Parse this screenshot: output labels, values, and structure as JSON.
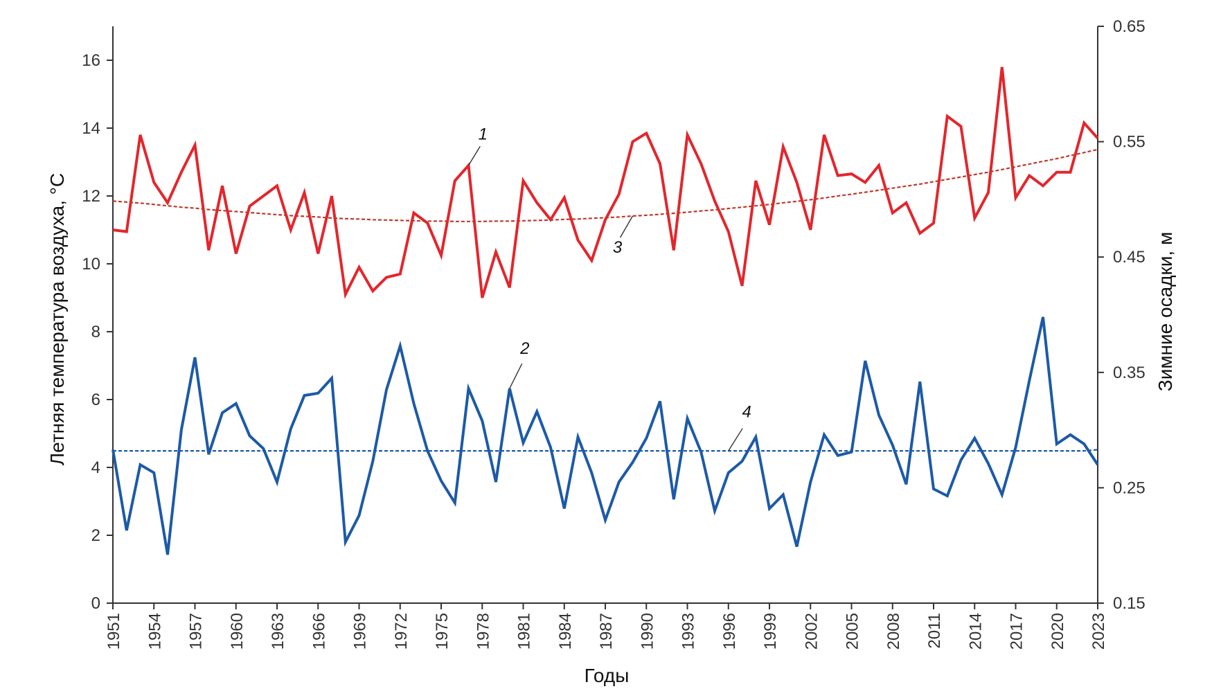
{
  "chart_data": {
    "type": "line",
    "xlabel": "Годы",
    "ylabel_left": "Летняя температура воздуха, °С",
    "ylabel_right": "Зимние осадки, м",
    "xlim": [
      1951,
      2023
    ],
    "ylim_left": [
      0,
      17
    ],
    "ylim_right": [
      0.15,
      0.65
    ],
    "x_ticks": [
      1951,
      1954,
      1957,
      1960,
      1963,
      1966,
      1969,
      1972,
      1975,
      1978,
      1981,
      1984,
      1987,
      1990,
      1993,
      1996,
      1999,
      2002,
      2005,
      2008,
      2011,
      2014,
      2017,
      2020,
      2023
    ],
    "y_ticks_left": [
      0,
      2,
      4,
      6,
      8,
      10,
      12,
      14,
      16
    ],
    "y_ticks_right": [
      "0.15",
      "0.25",
      "0.35",
      "0.45",
      "0.55",
      "0.65"
    ],
    "grid": false,
    "colors": {
      "temperature": "#e3262c",
      "precipitation": "#1d5aa7",
      "temp_trend": "#c0392b",
      "precip_trend": "#1d5aa7"
    },
    "x": [
      1951,
      1952,
      1953,
      1954,
      1955,
      1956,
      1957,
      1958,
      1959,
      1960,
      1961,
      1962,
      1963,
      1964,
      1965,
      1966,
      1967,
      1968,
      1969,
      1970,
      1971,
      1972,
      1973,
      1974,
      1975,
      1976,
      1977,
      1978,
      1979,
      1980,
      1981,
      1982,
      1983,
      1984,
      1985,
      1986,
      1987,
      1988,
      1989,
      1990,
      1991,
      1992,
      1993,
      1994,
      1995,
      1996,
      1997,
      1998,
      1999,
      2000,
      2001,
      2002,
      2003,
      2004,
      2005,
      2006,
      2007,
      2008,
      2009,
      2010,
      2011,
      2012,
      2013,
      2014,
      2015,
      2016,
      2017,
      2018,
      2019,
      2020,
      2021,
      2022,
      2023
    ],
    "series": [
      {
        "label": "1",
        "axis": "left",
        "style": "solid",
        "values": [
          11.0,
          10.95,
          13.8,
          12.4,
          11.8,
          12.7,
          13.5,
          10.4,
          12.3,
          10.3,
          11.7,
          12.0,
          12.3,
          11.0,
          12.1,
          10.3,
          12.0,
          9.1,
          9.9,
          9.2,
          9.6,
          9.7,
          11.5,
          11.2,
          10.25,
          12.45,
          12.9,
          9.0,
          10.35,
          9.3,
          12.45,
          11.8,
          11.3,
          11.95,
          10.7,
          10.1,
          11.3,
          12.05,
          13.6,
          13.85,
          12.95,
          10.4,
          13.8,
          12.95,
          11.85,
          10.95,
          9.35,
          12.45,
          11.15,
          13.45,
          12.4,
          11.0,
          13.8,
          12.6,
          12.65,
          12.4,
          12.9,
          11.5,
          11.8,
          10.9,
          11.2,
          14.35,
          14.05,
          11.35,
          12.1,
          15.8,
          11.95,
          12.6,
          12.3,
          12.7,
          12.7,
          14.15,
          13.7
        ]
      },
      {
        "label": "2",
        "axis": "right",
        "style": "solid",
        "values": [
          0.283,
          0.213,
          0.27,
          0.263,
          0.192,
          0.3,
          0.363,
          0.279,
          0.315,
          0.323,
          0.295,
          0.284,
          0.255,
          0.301,
          0.33,
          0.332,
          0.345,
          0.203,
          0.226,
          0.273,
          0.335,
          0.373,
          0.323,
          0.282,
          0.256,
          0.237,
          0.336,
          0.308,
          0.255,
          0.336,
          0.289,
          0.316,
          0.285,
          0.232,
          0.294,
          0.263,
          0.222,
          0.255,
          0.272,
          0.293,
          0.325,
          0.24,
          0.31,
          0.281,
          0.23,
          0.263,
          0.273,
          0.294,
          0.232,
          0.244,
          0.199,
          0.255,
          0.296,
          0.278,
          0.281,
          0.36,
          0.313,
          0.287,
          0.253,
          0.342,
          0.249,
          0.243,
          0.274,
          0.293,
          0.271,
          0.244,
          0.285,
          0.343,
          0.398,
          0.288,
          0.296,
          0.288,
          0.27
        ]
      },
      {
        "label": "3",
        "axis": "left",
        "style": "dashed",
        "values": [
          11.85,
          11.82,
          11.79,
          11.75,
          11.71,
          11.67,
          11.64,
          11.6,
          11.57,
          11.54,
          11.51,
          11.48,
          11.45,
          11.42,
          11.4,
          11.38,
          11.35,
          11.33,
          11.32,
          11.3,
          11.29,
          11.28,
          11.27,
          11.26,
          11.26,
          11.25,
          11.25,
          11.25,
          11.26,
          11.26,
          11.27,
          11.28,
          11.29,
          11.31,
          11.32,
          11.34,
          11.36,
          11.38,
          11.41,
          11.43,
          11.46,
          11.49,
          11.52,
          11.56,
          11.59,
          11.63,
          11.67,
          11.71,
          11.75,
          11.8,
          11.84,
          11.89,
          11.94,
          12.0,
          12.05,
          12.11,
          12.17,
          12.23,
          12.29,
          12.35,
          12.42,
          12.49,
          12.56,
          12.63,
          12.7,
          12.78,
          12.86,
          12.94,
          13.02,
          13.1,
          13.19,
          13.28,
          13.37
        ]
      },
      {
        "label": "4",
        "axis": "right",
        "style": "dashed",
        "values": [
          0.282,
          0.282,
          0.282,
          0.282,
          0.282,
          0.282,
          0.282,
          0.282,
          0.282,
          0.282,
          0.282,
          0.282,
          0.282,
          0.282,
          0.282,
          0.282,
          0.282,
          0.282,
          0.282,
          0.282,
          0.282,
          0.282,
          0.282,
          0.282,
          0.282,
          0.282,
          0.282,
          0.282,
          0.282,
          0.282,
          0.282,
          0.282,
          0.282,
          0.282,
          0.282,
          0.282,
          0.282,
          0.282,
          0.282,
          0.282,
          0.282,
          0.282,
          0.282,
          0.282,
          0.282,
          0.282,
          0.282,
          0.282,
          0.282,
          0.282,
          0.282,
          0.282,
          0.282,
          0.282,
          0.282,
          0.282,
          0.282,
          0.282,
          0.282,
          0.282,
          0.282,
          0.282,
          0.282,
          0.282,
          0.282,
          0.282,
          0.282,
          0.282,
          0.282,
          0.282,
          0.282,
          0.282,
          0.283
        ]
      }
    ],
    "annotations": [
      {
        "text": "1",
        "series": 0,
        "at_year": 1977
      },
      {
        "text": "2",
        "series": 1,
        "at_year": 1980
      },
      {
        "text": "3",
        "series": 2,
        "at_year": 1989
      },
      {
        "text": "4",
        "series": 3,
        "at_year": 1996
      }
    ]
  }
}
